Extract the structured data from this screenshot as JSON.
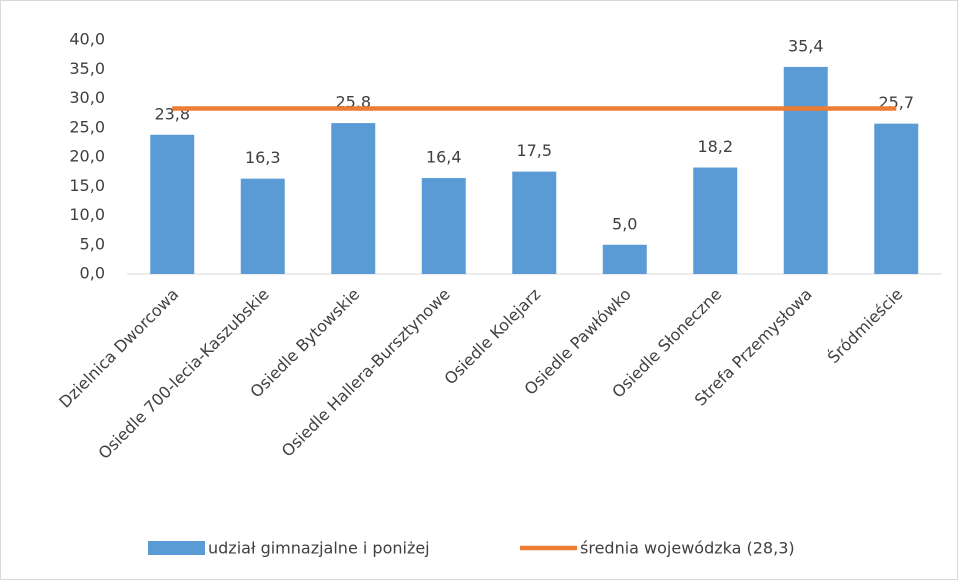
{
  "chart_data": {
    "type": "bar",
    "categories": [
      "Dzielnica Dworcowa",
      "Osiedle 700-lecia-Kaszubskie",
      "Osiedle Bytowskie",
      "Osiedle Hallera-Bursztynowe",
      "Osiedle Kolejarz",
      "Osiedle Pawłówko",
      "Osiedle Słoneczne",
      "Strefa Przemysłowa",
      "Śródmieście"
    ],
    "series": [
      {
        "name": "udział gimnazjalne i poniżej",
        "type": "bar",
        "color": "#5b9bd5",
        "values": [
          23.8,
          16.3,
          25.8,
          16.4,
          17.5,
          5.0,
          18.2,
          35.4,
          25.7
        ],
        "value_labels": [
          "23,8",
          "16,3",
          "25,8",
          "16,4",
          "17,5",
          "5,0",
          "18,2",
          "35,4",
          "25,7"
        ]
      },
      {
        "name": "średnia wojewódzka (28,3)",
        "type": "line",
        "color": "#ed7d31",
        "values": [
          28.3,
          28.3,
          28.3,
          28.3,
          28.3,
          28.3,
          28.3,
          28.3,
          28.3
        ]
      }
    ],
    "ylim": [
      0,
      40
    ],
    "yticks": [
      {
        "value": 0,
        "label": "0,0"
      },
      {
        "value": 5,
        "label": "5,0"
      },
      {
        "value": 10,
        "label": "10,0"
      },
      {
        "value": 15,
        "label": "15,0"
      },
      {
        "value": 20,
        "label": "20,0"
      },
      {
        "value": 25,
        "label": "25,0"
      },
      {
        "value": 30,
        "label": "30,0"
      },
      {
        "value": 35,
        "label": "35,0"
      },
      {
        "value": 40,
        "label": "40,0"
      }
    ],
    "grid": false,
    "legend": "bottom"
  }
}
